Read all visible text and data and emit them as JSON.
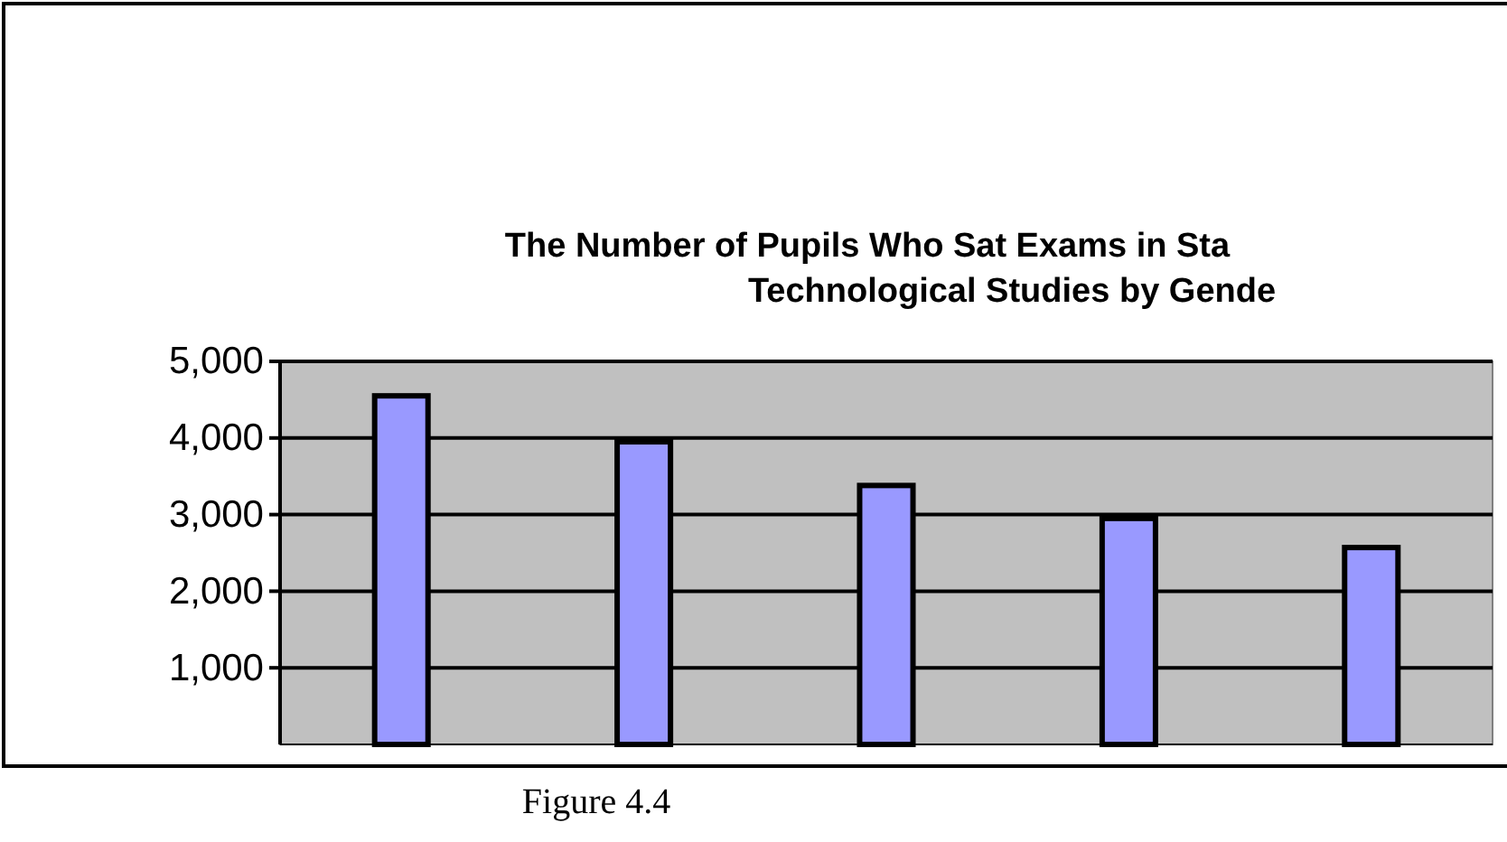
{
  "chart_data": {
    "type": "bar",
    "title": "The Number of Pupils Who Sat Exams in Sta\nTechnological Studies by Gende",
    "categories": [
      null,
      null,
      null,
      null,
      null
    ],
    "values": [
      4550,
      3950,
      3380,
      2950,
      2570
    ],
    "color": "#9999ff",
    "ylim": [
      0,
      5000
    ],
    "yticks": [
      {
        "value": 1000,
        "label": "1,000"
      },
      {
        "value": 2000,
        "label": "2,000"
      },
      {
        "value": 3000,
        "label": "3,000"
      },
      {
        "value": 4000,
        "label": "4,000"
      },
      {
        "value": 5000,
        "label": "5,000"
      }
    ],
    "grid": "y",
    "annotations": [
      "Figure 4.4"
    ]
  }
}
